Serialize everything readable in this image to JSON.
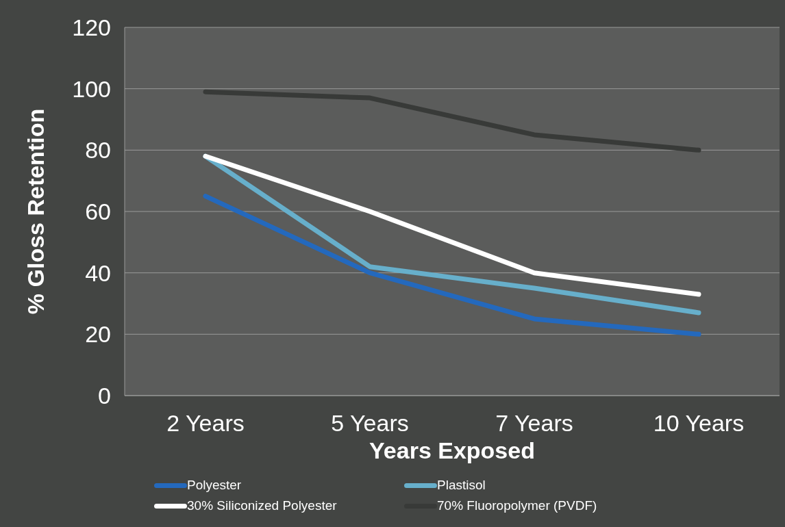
{
  "chart_data": {
    "type": "line",
    "xlabel": "Years Exposed",
    "ylabel": "% Gloss Retention",
    "categories": [
      "2 Years",
      "5 Years",
      "7 Years",
      "10 Years"
    ],
    "series": [
      {
        "name": "Polyester",
        "color": "#2469bd",
        "values": [
          65,
          40,
          25,
          20
        ]
      },
      {
        "name": "Plastisol",
        "color": "#67afcb",
        "values": [
          78,
          42,
          35,
          27
        ]
      },
      {
        "name": "30% Siliconized Polyester",
        "color": "#ffffff",
        "values": [
          78,
          60,
          40,
          33
        ]
      },
      {
        "name": "70% Fluoropolymer (PVDF)",
        "color": "#383a38",
        "values": [
          99,
          97,
          85,
          80
        ]
      }
    ],
    "ylim": [
      0,
      120
    ],
    "yticks": [
      0,
      20,
      40,
      60,
      80,
      100,
      120
    ],
    "grid": "y",
    "legend": "bottom",
    "marker": "none",
    "line_style": "solid"
  }
}
